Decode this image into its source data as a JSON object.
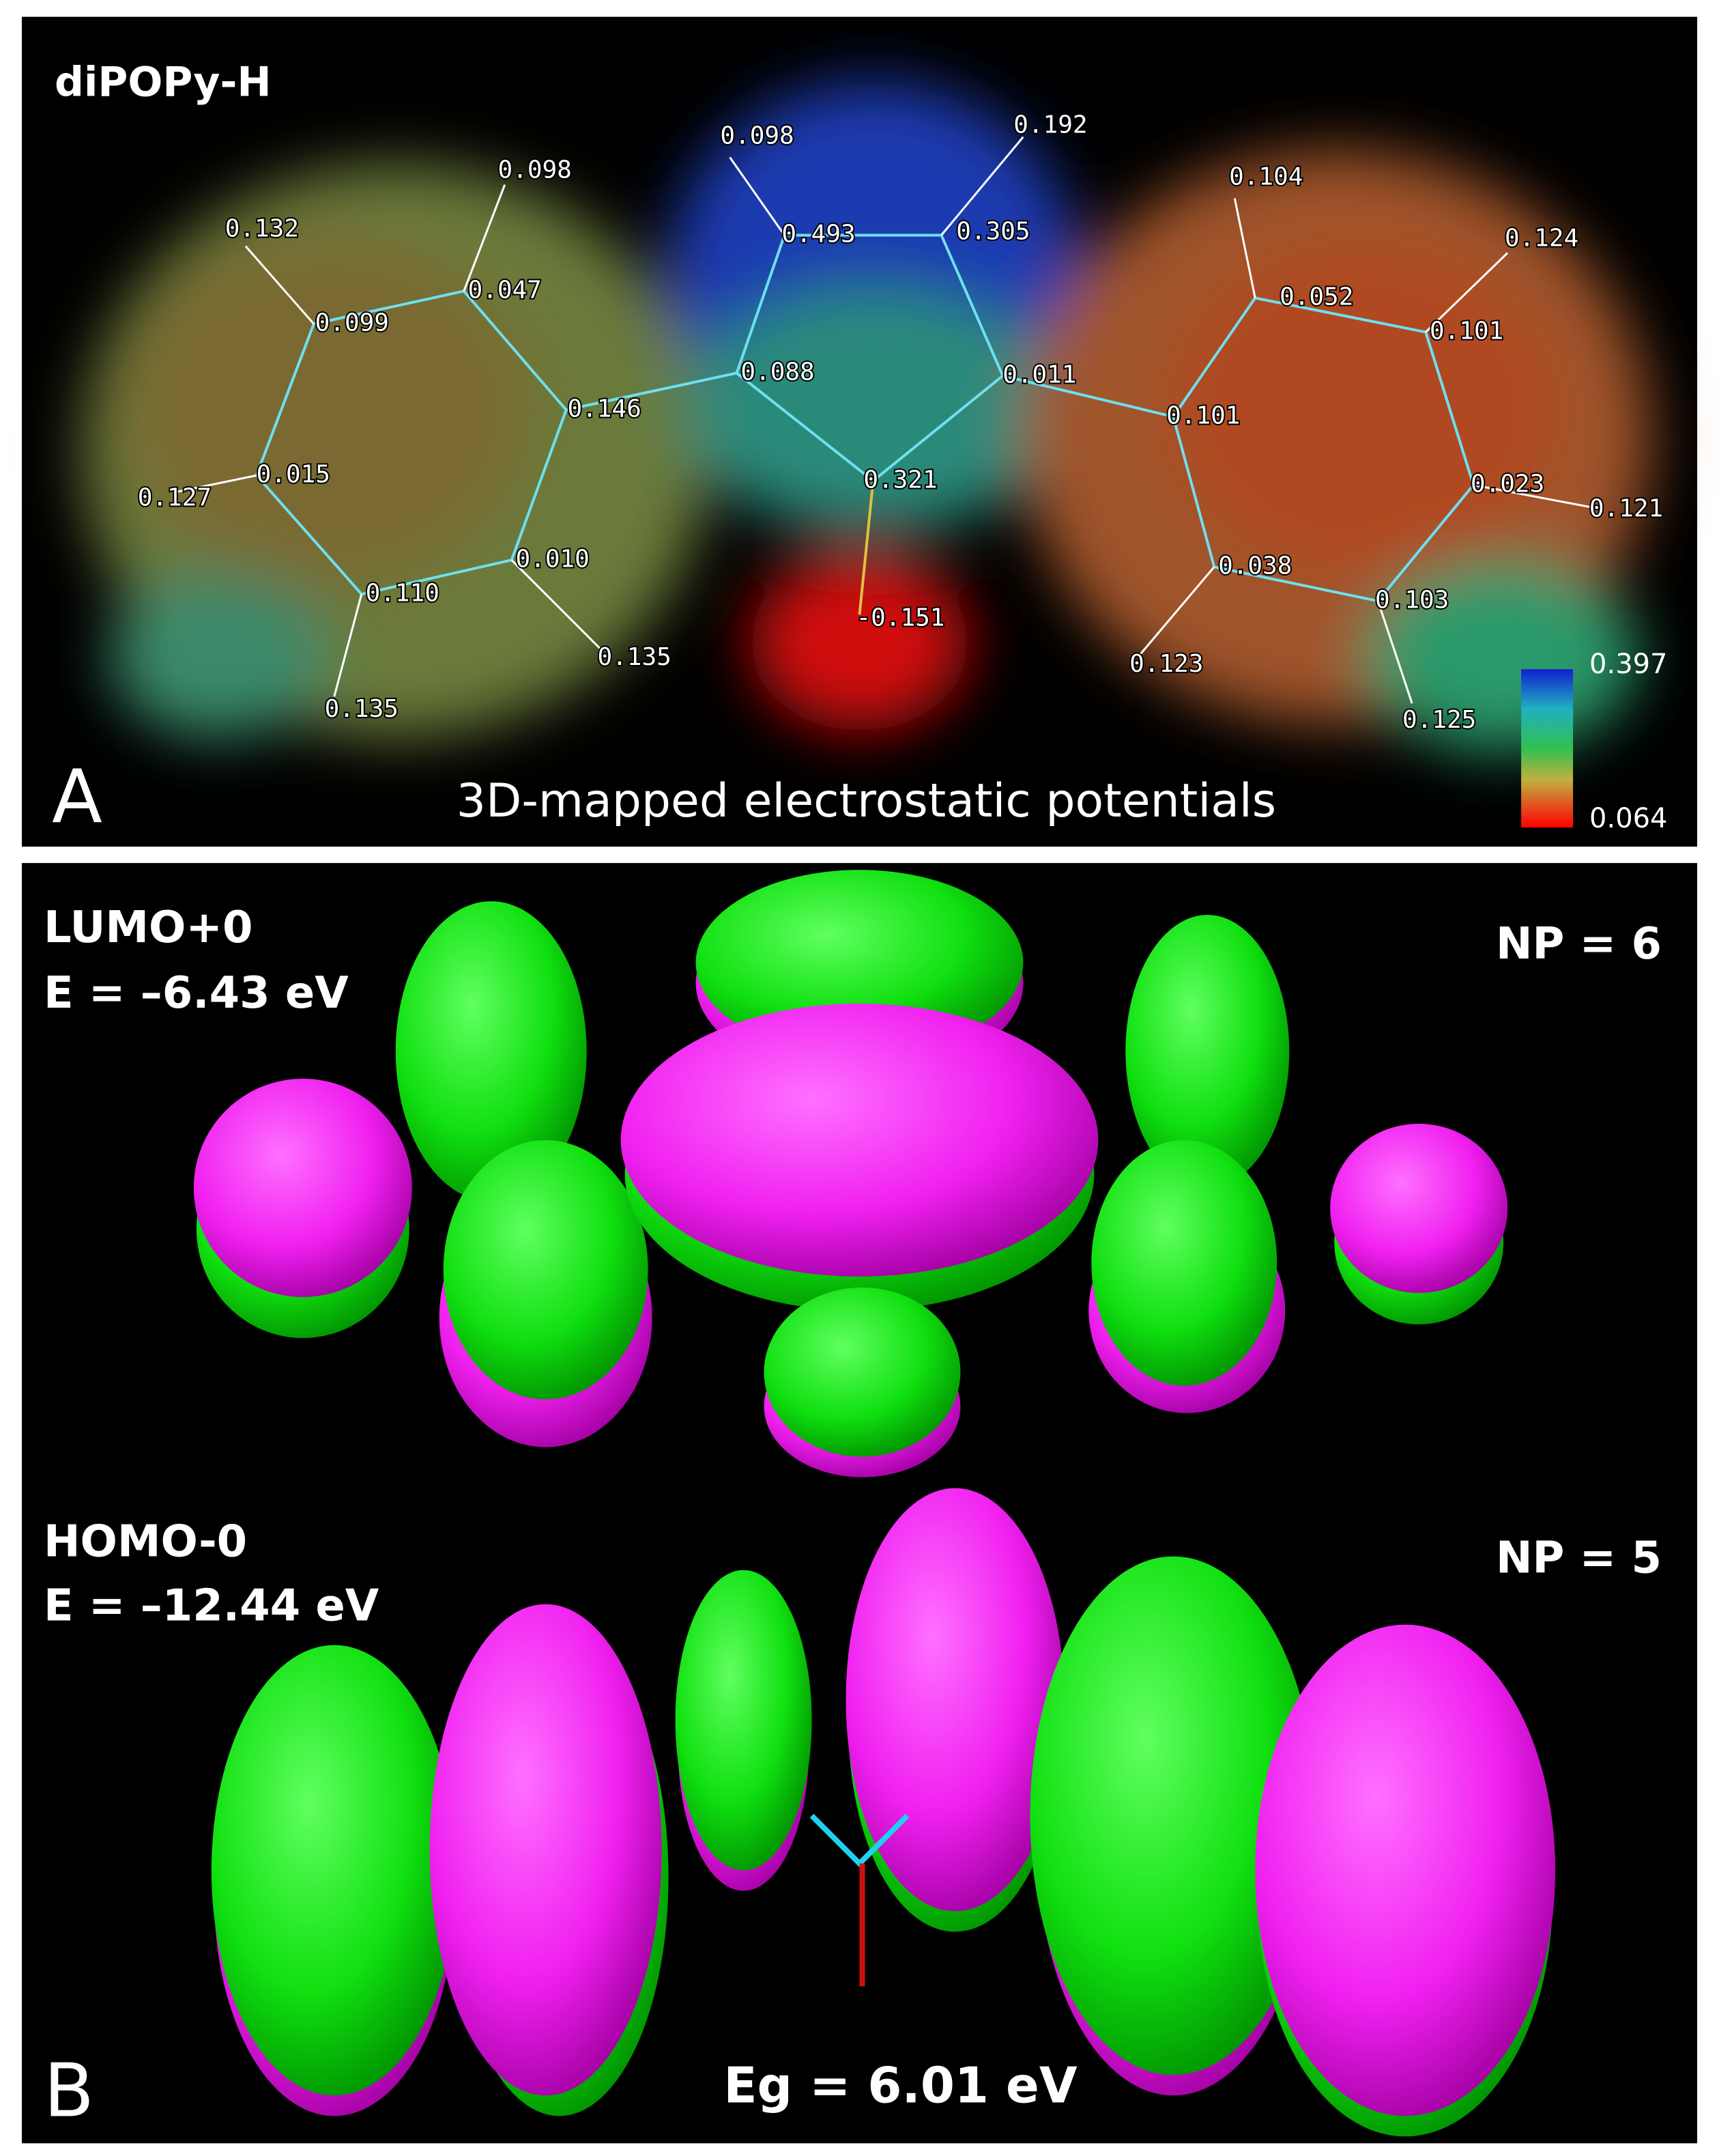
{
  "panel_a": {
    "label": "A",
    "title": "diPOPy-H",
    "caption": "3D-mapped electrostatic potentials",
    "charges": [
      "0.098",
      "0.192",
      "0.098",
      "0.493",
      "0.305",
      "0.104",
      "0.124",
      "0.132",
      "0.047",
      "0.052",
      "0.101",
      "0.099",
      "0.088",
      "0.011",
      "0.146",
      "0.101",
      "0.321",
      "0.015",
      "0.127",
      "0.023",
      "0.121",
      "0.010",
      "0.038",
      "0.110",
      "0.103",
      "-0.151",
      "0.135",
      "0.123",
      "0.135",
      "0.125"
    ],
    "colorbar": {
      "max": "0.397",
      "min": "0.064"
    }
  },
  "panel_b": {
    "label": "B",
    "lumo": {
      "name": "LUMO+0",
      "energy": "E = –6.43 eV",
      "np": "NP = 6"
    },
    "homo": {
      "name": "HOMO-0",
      "energy": "E = –12.44 eV",
      "np": "NP = 5"
    },
    "gap": "Eg = 6.01 eV"
  }
}
